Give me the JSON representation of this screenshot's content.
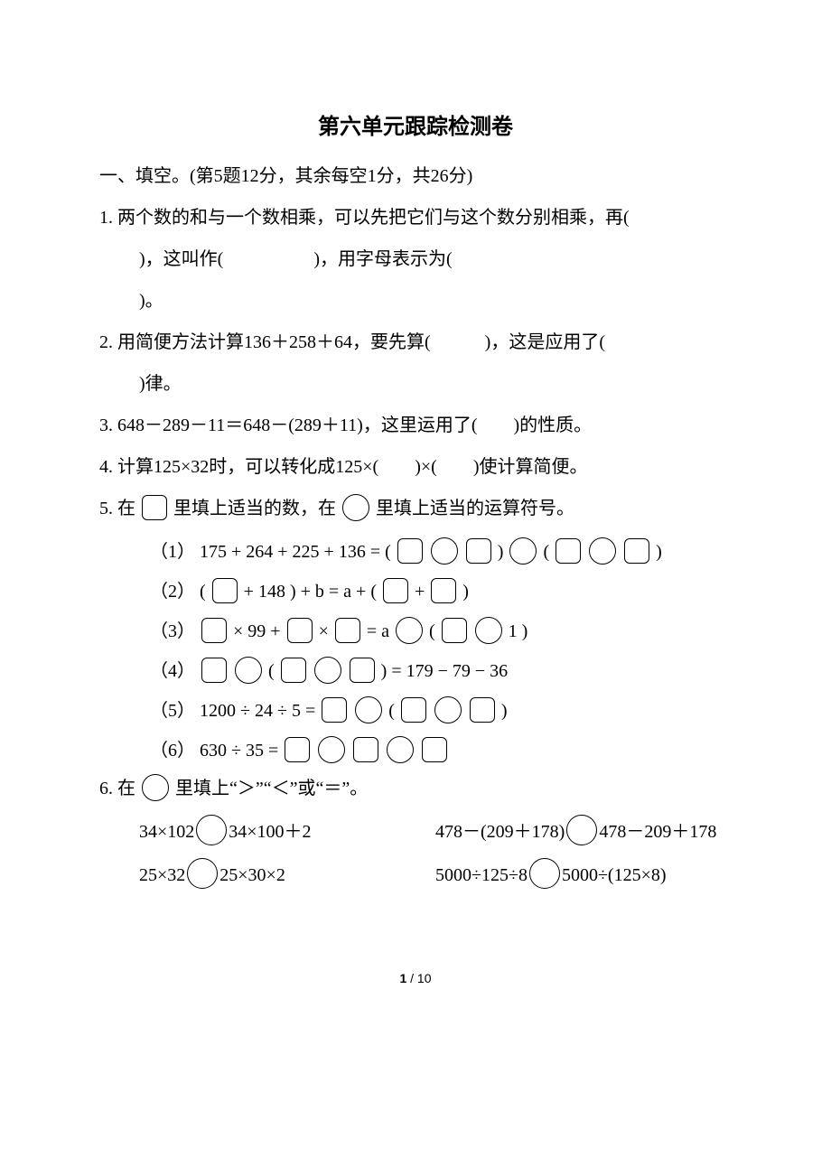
{
  "title": "第六单元跟踪检测卷",
  "section1": {
    "head": "一、填空。(第5题12分，其余每空1分，共26分)",
    "q1_a": "1. 两个数的和与一个数相乘，可以先把它们与这个数分别相乘，再(",
    "q1_b": ")，这叫作(　　　　　)，用字母表示为(",
    "q1_c": ")。",
    "q2_a": "2. 用简便方法计算136＋258＋64，要先算(　　　)，这是应用了(",
    "q2_b": ")律。",
    "q3": "3. 648－289－11＝648－(289＋11)，这里运用了(　　)的性质。",
    "q4": "4. 计算125×32时，可以转化成125×(　　)×(　　)使计算简便。",
    "q5_head_a": "5. 在",
    "q5_head_b": "里填上适当的数，在",
    "q5_head_c": "里填上适当的运算符号。",
    "q5_1_a": "（1） 175 + 264 + 225 + 136 = (",
    "q5_1_b": ")",
    "q5_1_c": "(",
    "q5_1_d": ")",
    "q5_2_a": "（2） (",
    "q5_2_b": " + 148 ) + b = a + (",
    "q5_2_c": " + ",
    "q5_2_d": ")",
    "q5_3_a": "（3） ",
    "q5_3_b": " × 99 + ",
    "q5_3_c": " × ",
    "q5_3_d": " = a ",
    "q5_3_e": "(",
    "q5_3_f": " 1 )",
    "q5_4_a": "（4） ",
    "q5_4_b": "(",
    "q5_4_c": ") = 179 − 79 − 36",
    "q5_5_a": "（5） 1200 ÷ 24 ÷ 5 = ",
    "q5_5_b": "(",
    "q5_5_c": ")",
    "q5_6_a": "（6） 630 ÷ 35 = ",
    "q6_head_a": "6. 在",
    "q6_head_b": "里填上“＞”“＜”或“＝”。",
    "q6_r1c1_a": "34×102",
    "q6_r1c1_b": "34×100＋2",
    "q6_r1c2_a": "478－(209＋178)",
    "q6_r1c2_b": "478－209＋178",
    "q6_r2c1_a": "25×32",
    "q6_r2c1_b": "25×30×2",
    "q6_r2c2_a": "5000÷125÷8",
    "q6_r2c2_b": "5000÷(125×8)"
  },
  "pagenum_a": "1",
  "pagenum_b": "/ 10"
}
